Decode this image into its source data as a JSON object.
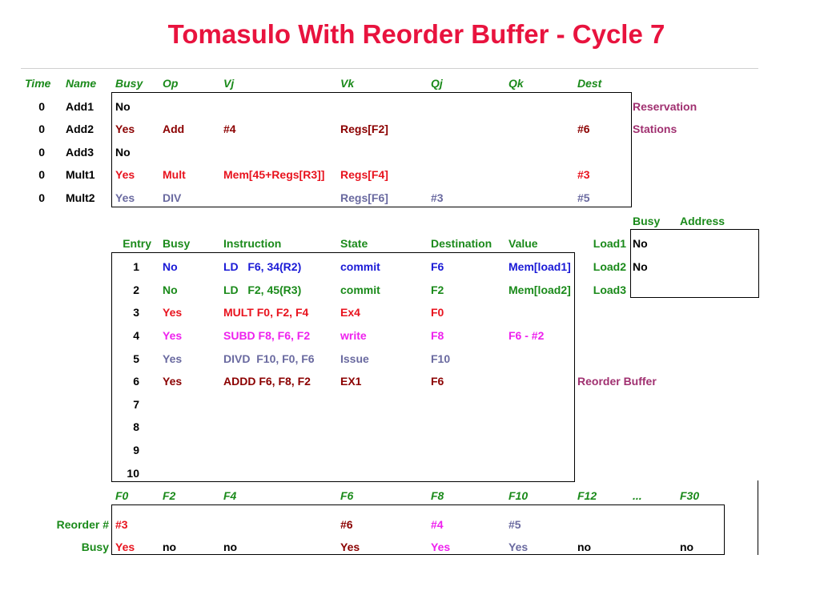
{
  "title": "Tomasulo With Reorder Buffer - Cycle 7",
  "colors": {
    "green": "#1a8a1a",
    "maroon": "#8b0000",
    "red": "#e8131e",
    "blue": "#1a1ad6",
    "magenta": "#ee22ee",
    "slate": "#6a6aa0",
    "purple": "#a03070",
    "black": "#000000"
  },
  "rs": {
    "headers": [
      "Time",
      "Name",
      "Busy",
      "Op",
      "Vj",
      "Vk",
      "Qj",
      "Qk",
      "Dest"
    ],
    "label1": "Reservation",
    "label2": "Stations",
    "rows": [
      {
        "time": "0",
        "name": "Add1",
        "busy": "No",
        "op": "",
        "vj": "",
        "vk": "",
        "qj": "",
        "qk": "",
        "dest": "",
        "color": "#000000"
      },
      {
        "time": "0",
        "name": "Add2",
        "busy": "Yes",
        "op": "Add",
        "vj": "#4",
        "vk": "Regs[F2]",
        "qj": "",
        "qk": "",
        "dest": "#6",
        "color": "#8b0000"
      },
      {
        "time": "0",
        "name": "Add3",
        "busy": "No",
        "op": "",
        "vj": "",
        "vk": "",
        "qj": "",
        "qk": "",
        "dest": "",
        "color": "#000000"
      },
      {
        "time": "0",
        "name": "Mult1",
        "busy": "Yes",
        "op": "Mult",
        "vj": "Mem[45+Regs[R3]]",
        "vk": "Regs[F4]",
        "qj": "",
        "qk": "",
        "dest": "#3",
        "color": "#e8131e"
      },
      {
        "time": "0",
        "name": "Mult2",
        "busy": "Yes",
        "op": "DIV",
        "vj": "",
        "vk": "Regs[F6]",
        "qj": "#3",
        "qk": "",
        "dest": "#5",
        "color": "#6a6aa0"
      }
    ]
  },
  "load": {
    "headers": [
      "Busy",
      "Address"
    ],
    "rows": [
      {
        "name": "Load1",
        "busy": "No",
        "address": ""
      },
      {
        "name": "Load2",
        "busy": "No",
        "address": ""
      },
      {
        "name": "Load3",
        "busy": "",
        "address": ""
      }
    ]
  },
  "rob": {
    "headers": [
      "Entry",
      "Busy",
      "Instruction",
      "State",
      "Destination",
      "Value"
    ],
    "label": "Reorder Buffer",
    "rows": [
      {
        "entry": "1",
        "busy": "No",
        "instr": "LD   F6, 34(R2)",
        "state": "commit",
        "dest": "F6",
        "value": "Mem[load1]",
        "color": "#1a1ad6"
      },
      {
        "entry": "2",
        "busy": "No",
        "instr": "LD   F2, 45(R3)",
        "state": "commit",
        "dest": "F2",
        "value": "Mem[load2]",
        "color": "#1a8a1a"
      },
      {
        "entry": "3",
        "busy": "Yes",
        "instr": "MULT F0, F2, F4",
        "state": "Ex4",
        "dest": "F0",
        "value": "",
        "color": "#e8131e"
      },
      {
        "entry": "4",
        "busy": "Yes",
        "instr": "SUBD F8, F6, F2",
        "state": "write",
        "dest": "F8",
        "value": "F6 - #2",
        "color": "#ee22ee"
      },
      {
        "entry": "5",
        "busy": "Yes",
        "instr": "DIVD  F10, F0, F6",
        "state": "Issue",
        "dest": "F10",
        "value": "",
        "color": "#6a6aa0"
      },
      {
        "entry": "6",
        "busy": "Yes",
        "instr": "ADDD F6, F8, F2",
        "state": "EX1",
        "dest": "F6",
        "value": "",
        "color": "#8b0000"
      },
      {
        "entry": "7",
        "busy": "",
        "instr": "",
        "state": "",
        "dest": "",
        "value": "",
        "color": "#000000"
      },
      {
        "entry": "8",
        "busy": "",
        "instr": "",
        "state": "",
        "dest": "",
        "value": "",
        "color": "#000000"
      },
      {
        "entry": "9",
        "busy": "",
        "instr": "",
        "state": "",
        "dest": "",
        "value": "",
        "color": "#000000"
      },
      {
        "entry": "10",
        "busy": "",
        "instr": "",
        "state": "",
        "dest": "",
        "value": "",
        "color": "#000000"
      }
    ]
  },
  "regs": {
    "names": [
      "F0",
      "F2",
      "F4",
      "F6",
      "F8",
      "F10",
      "F12",
      "...",
      "F30"
    ],
    "reorder_label": "Reorder #",
    "busy_label": "Busy",
    "reorder": [
      {
        "v": "#3",
        "color": "#e8131e"
      },
      {
        "v": "",
        "color": "#000000"
      },
      {
        "v": "",
        "color": "#000000"
      },
      {
        "v": "#6",
        "color": "#8b0000"
      },
      {
        "v": "#4",
        "color": "#ee22ee"
      },
      {
        "v": "#5",
        "color": "#6a6aa0"
      },
      {
        "v": "",
        "color": "#000000"
      },
      {
        "v": "",
        "color": "#000000"
      },
      {
        "v": "",
        "color": "#000000"
      }
    ],
    "busy": [
      {
        "v": "Yes",
        "color": "#e8131e"
      },
      {
        "v": "no",
        "color": "#000000"
      },
      {
        "v": "no",
        "color": "#000000"
      },
      {
        "v": "Yes",
        "color": "#8b0000"
      },
      {
        "v": "Yes",
        "color": "#ee22ee"
      },
      {
        "v": "Yes",
        "color": "#6a6aa0"
      },
      {
        "v": "no",
        "color": "#000000"
      },
      {
        "v": "",
        "color": "#000000"
      },
      {
        "v": "no",
        "color": "#000000"
      }
    ]
  }
}
